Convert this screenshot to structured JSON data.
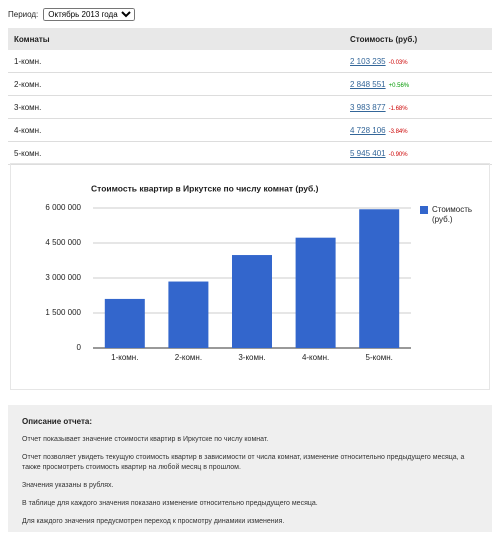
{
  "period": {
    "label": "Период:",
    "selected": "Октябрь 2013 года"
  },
  "table": {
    "headers": [
      "Комнаты",
      "Стоимость (руб.)"
    ],
    "rows": [
      {
        "rooms": "1-комн.",
        "price": "2 103 235",
        "change": "-0.03%",
        "trend": "down"
      },
      {
        "rooms": "2-комн.",
        "price": "2 848 551",
        "change": "+0.56%",
        "trend": "up"
      },
      {
        "rooms": "3-комн.",
        "price": "3 983 877",
        "change": "-1.68%",
        "trend": "down"
      },
      {
        "rooms": "4-комн.",
        "price": "4 728 106",
        "change": "-3.84%",
        "trend": "down"
      },
      {
        "rooms": "5-комн.",
        "price": "5 945 401",
        "change": "-0.90%",
        "trend": "down"
      }
    ]
  },
  "chart": {
    "type": "bar",
    "title": "Стоимость квартир в Иркутске по числу комнат (руб.)",
    "categories": [
      "1-комн.",
      "2-комн.",
      "3-комн.",
      "4-комн.",
      "5-комн."
    ],
    "series": [
      {
        "name": "Стоимость (руб.)",
        "color": "#3366cc",
        "values": [
          2103235,
          2848551,
          3983877,
          4728106,
          5945401
        ]
      }
    ],
    "ylim": [
      0,
      6000000
    ],
    "yticks": [
      0,
      {
        "value": 1500000,
        "label": "1 500 000"
      },
      {
        "value": 3000000,
        "label": "3 000 000"
      },
      {
        "value": 4500000,
        "label": "4 500 000"
      },
      {
        "value": 6000000,
        "label": "6 000 000"
      }
    ],
    "grid": true,
    "legend": "right"
  },
  "description": {
    "title": "Описание отчета:",
    "paragraphs": [
      "Отчет показывает значение стоимости квартир в Иркутске по числу комнат.",
      "Отчет позволяет увидеть текущую стоимость квартир в зависимости от числа комнат, изменение относительно предыдущего месяца, а также просмотреть стоимость квартир на любой месяц в прошлом.",
      "Значения указаны в рублях.",
      "В таблице для каждого значения показано изменение относительно предыдущего месяца.",
      "Для каждого значения предусмотрен переход к просмотру динамики изменения."
    ]
  }
}
